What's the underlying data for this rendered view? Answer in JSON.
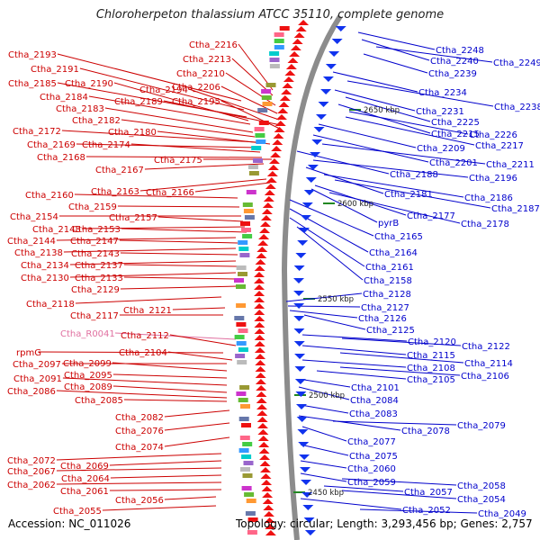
{
  "title": "Chloroherpeton thalassium ATCC 35110, complete genome",
  "accession": "Accession: NC_011026",
  "topology": "Topology: circular; Length: 3,293,456 bp; Genes: 2,757",
  "colors": {
    "left_label": "#cc0000",
    "right_label": "#0000cc",
    "rna_label": "#e070a0",
    "backbone": "#8c8c8c",
    "forward_feature": "#ee1111",
    "reverse_feature": "#1133ee"
  },
  "scale_ticks": [
    "2650 kbp",
    "2600 kbp",
    "2550 kbp",
    "2500 kbp",
    "2450 kbp"
  ],
  "left_labels": [
    {
      "text": "Ctha_2216",
      "kind": "gene"
    },
    {
      "text": "Ctha_2213",
      "kind": "gene"
    },
    {
      "text": "Ctha_2193",
      "kind": "gene"
    },
    {
      "text": "Ctha_2210",
      "kind": "gene"
    },
    {
      "text": "Ctha_2191",
      "kind": "gene"
    },
    {
      "text": "Ctha_2206",
      "kind": "gene"
    },
    {
      "text": "Ctha_2185",
      "kind": "gene"
    },
    {
      "text": "Ctha_2190",
      "kind": "gene"
    },
    {
      "text": "Ctha_2194",
      "kind": "gene"
    },
    {
      "text": "Ctha_2184",
      "kind": "gene"
    },
    {
      "text": "Ctha_2189",
      "kind": "gene"
    },
    {
      "text": "Ctha_2195",
      "kind": "gene"
    },
    {
      "text": "Ctha_2183",
      "kind": "gene"
    },
    {
      "text": "Ctha_2182",
      "kind": "gene"
    },
    {
      "text": "Ctha_2172",
      "kind": "gene"
    },
    {
      "text": "Ctha_2180",
      "kind": "gene"
    },
    {
      "text": "Ctha_2169",
      "kind": "gene"
    },
    {
      "text": "Ctha_2174",
      "kind": "gene"
    },
    {
      "text": "Ctha_2168",
      "kind": "gene"
    },
    {
      "text": "Ctha_2175",
      "kind": "gene"
    },
    {
      "text": "Ctha_2167",
      "kind": "gene"
    },
    {
      "text": "Ctha_2163",
      "kind": "gene"
    },
    {
      "text": "Ctha_2166",
      "kind": "gene"
    },
    {
      "text": "Ctha_2160",
      "kind": "gene"
    },
    {
      "text": "Ctha_2159",
      "kind": "gene"
    },
    {
      "text": "Ctha_2154",
      "kind": "gene"
    },
    {
      "text": "Ctha_2157",
      "kind": "gene"
    },
    {
      "text": "Ctha_2148",
      "kind": "gene"
    },
    {
      "text": "Ctha_2153",
      "kind": "gene"
    },
    {
      "text": "Ctha_2144",
      "kind": "gene"
    },
    {
      "text": "Ctha_2147",
      "kind": "gene"
    },
    {
      "text": "Ctha_2138",
      "kind": "gene"
    },
    {
      "text": "Ctha_2143",
      "kind": "gene"
    },
    {
      "text": "Ctha_2134",
      "kind": "gene"
    },
    {
      "text": "Ctha_2137",
      "kind": "gene"
    },
    {
      "text": "Ctha_2130",
      "kind": "gene"
    },
    {
      "text": "Ctha_2133",
      "kind": "gene"
    },
    {
      "text": "Ctha_2129",
      "kind": "gene"
    },
    {
      "text": "Ctha_2118",
      "kind": "gene"
    },
    {
      "text": "Ctha_2121",
      "kind": "gene"
    },
    {
      "text": "Ctha_2117",
      "kind": "gene"
    },
    {
      "text": "Ctha_R0041",
      "kind": "rna"
    },
    {
      "text": "Ctha_2112",
      "kind": "gene"
    },
    {
      "text": "rpmG",
      "kind": "gene"
    },
    {
      "text": "Ctha_2104",
      "kind": "gene"
    },
    {
      "text": "Ctha_2097",
      "kind": "gene"
    },
    {
      "text": "Ctha_2099",
      "kind": "gene"
    },
    {
      "text": "Ctha_2095",
      "kind": "gene"
    },
    {
      "text": "Ctha_2091",
      "kind": "gene"
    },
    {
      "text": "Ctha_2089",
      "kind": "gene"
    },
    {
      "text": "Ctha_2086",
      "kind": "gene"
    },
    {
      "text": "Ctha_2085",
      "kind": "gene"
    },
    {
      "text": "Ctha_2082",
      "kind": "gene"
    },
    {
      "text": "Ctha_2076",
      "kind": "gene"
    },
    {
      "text": "Ctha_2074",
      "kind": "gene"
    },
    {
      "text": "Ctha_2072",
      "kind": "gene"
    },
    {
      "text": "Ctha_2069",
      "kind": "gene"
    },
    {
      "text": "Ctha_2067",
      "kind": "gene"
    },
    {
      "text": "Ctha_2064",
      "kind": "gene"
    },
    {
      "text": "Ctha_2062",
      "kind": "gene"
    },
    {
      "text": "Ctha_2061",
      "kind": "gene"
    },
    {
      "text": "Ctha_2056",
      "kind": "gene"
    },
    {
      "text": "Ctha_2055",
      "kind": "gene"
    }
  ],
  "right_labels": [
    {
      "text": "Ctha_2248"
    },
    {
      "text": "Ctha_2240"
    },
    {
      "text": "Ctha_2249"
    },
    {
      "text": "Ctha_2239"
    },
    {
      "text": "Ctha_2234"
    },
    {
      "text": "Ctha_2238"
    },
    {
      "text": "Ctha_2231"
    },
    {
      "text": "Ctha_2225"
    },
    {
      "text": "Ctha_2215"
    },
    {
      "text": "Ctha_2226"
    },
    {
      "text": "Ctha_2217"
    },
    {
      "text": "Ctha_2209"
    },
    {
      "text": "Ctha_2201"
    },
    {
      "text": "Ctha_2211"
    },
    {
      "text": "Ctha_2188"
    },
    {
      "text": "Ctha_2196"
    },
    {
      "text": "Ctha_2181"
    },
    {
      "text": "Ctha_2186"
    },
    {
      "text": "Ctha_2187"
    },
    {
      "text": "Ctha_2177"
    },
    {
      "text": "pyrB"
    },
    {
      "text": "Ctha_2178"
    },
    {
      "text": "Ctha_2165"
    },
    {
      "text": "Ctha_2164"
    },
    {
      "text": "Ctha_2161"
    },
    {
      "text": "Ctha_2158"
    },
    {
      "text": "Ctha_2128"
    },
    {
      "text": "Ctha_2127"
    },
    {
      "text": "Ctha_2126"
    },
    {
      "text": "Ctha_2125"
    },
    {
      "text": "Ctha_2120"
    },
    {
      "text": "Ctha_2122"
    },
    {
      "text": "Ctha_2115"
    },
    {
      "text": "Ctha_2114"
    },
    {
      "text": "Ctha_2108"
    },
    {
      "text": "Ctha_2106"
    },
    {
      "text": "Ctha_2105"
    },
    {
      "text": "Ctha_2101"
    },
    {
      "text": "Ctha_2084"
    },
    {
      "text": "Ctha_2083"
    },
    {
      "text": "Ctha_2078"
    },
    {
      "text": "Ctha_2079"
    },
    {
      "text": "Ctha_2077"
    },
    {
      "text": "Ctha_2075"
    },
    {
      "text": "Ctha_2060"
    },
    {
      "text": "Ctha_2059"
    },
    {
      "text": "Ctha_2058"
    },
    {
      "text": "Ctha_2057"
    },
    {
      "text": "Ctha_2054"
    },
    {
      "text": "Ctha_2052"
    },
    {
      "text": "Ctha_2049"
    }
  ]
}
